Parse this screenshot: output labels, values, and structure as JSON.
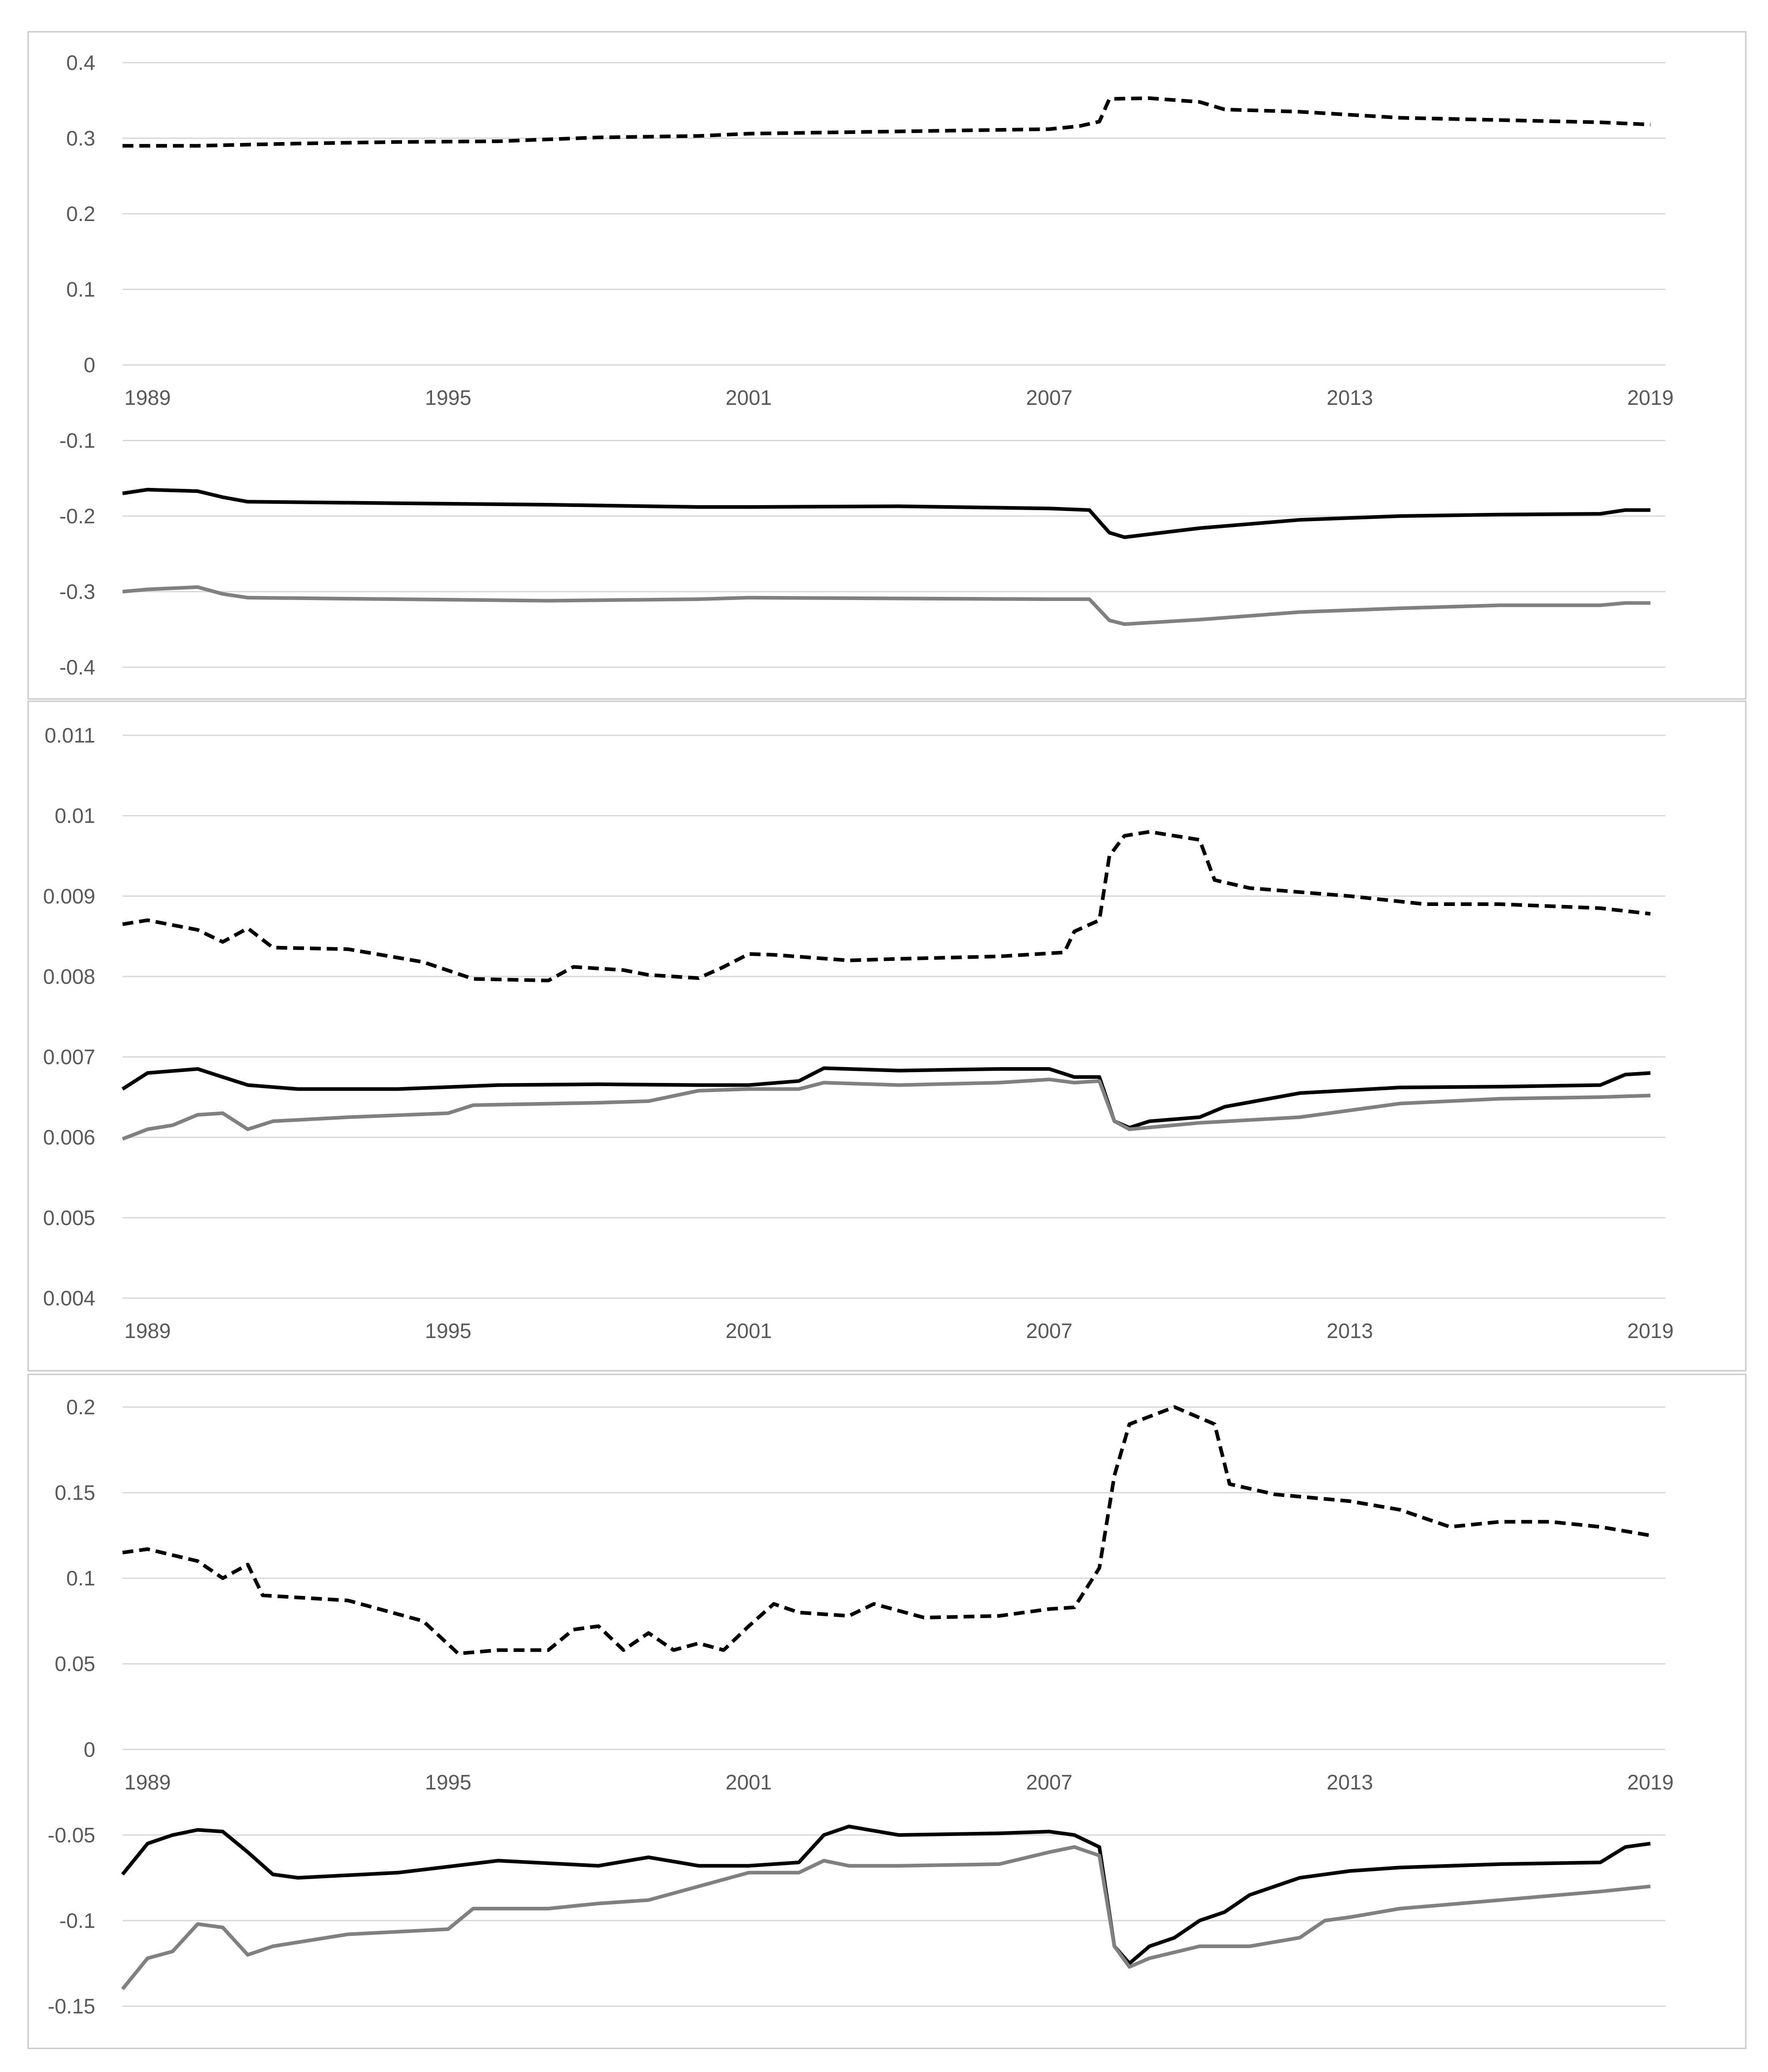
{
  "colors": {
    "dashed_series": "#000000",
    "black_series": "#000000",
    "gray_series": "#808080",
    "gridline": "#d9d9d9",
    "tick_text": "#595959",
    "panel_border": "#c8c8c8"
  },
  "chart_data": [
    {
      "type": "line",
      "title": "",
      "xlabel": "",
      "ylabel": "",
      "x_range": [
        1989,
        2019
      ],
      "xlim": [
        1988.5,
        2019.3
      ],
      "ylim": [
        -0.4,
        0.4
      ],
      "yticks": [
        0.4,
        0.3,
        0.2,
        0.1,
        0,
        -0.1,
        -0.2,
        -0.3,
        -0.4
      ],
      "ytick_labels": [
        "0.4",
        "0.3",
        "0.2",
        "0.1",
        "0",
        "-0.1",
        "-0.2",
        "-0.3",
        "-0.4"
      ],
      "xticks": [
        1989,
        1995,
        2001,
        2007,
        2013,
        2019
      ],
      "xtick_labels": [
        "1989",
        "1995",
        "2001",
        "2007",
        "2013",
        "2019"
      ],
      "xtick_label_at": 0,
      "grid": true,
      "legend": "none",
      "series": [
        {
          "name": "dashed",
          "style": "dashed",
          "x": [
            1988.5,
            1990,
            1992,
            1994,
            1996,
            1998,
            2000,
            2001,
            2004,
            2007,
            2007.6,
            2008,
            2008.2,
            2009,
            2010,
            2010.5,
            2012,
            2014,
            2016,
            2018,
            2019
          ],
          "y": [
            0.29,
            0.29,
            0.293,
            0.295,
            0.296,
            0.301,
            0.303,
            0.306,
            0.309,
            0.312,
            0.316,
            0.322,
            0.352,
            0.353,
            0.348,
            0.338,
            0.335,
            0.327,
            0.324,
            0.321,
            0.318
          ]
        },
        {
          "name": "black",
          "style": "solid",
          "x": [
            1988.5,
            1989,
            1990,
            1990.5,
            1991,
            1994,
            1997,
            2000,
            2001,
            2004,
            2007,
            2007.8,
            2008.2,
            2008.5,
            2010,
            2012,
            2014,
            2016,
            2018,
            2018.5,
            2019
          ],
          "y": [
            -0.17,
            -0.165,
            -0.167,
            -0.175,
            -0.181,
            -0.183,
            -0.185,
            -0.188,
            -0.188,
            -0.187,
            -0.19,
            -0.192,
            -0.222,
            -0.228,
            -0.216,
            -0.205,
            -0.2,
            -0.198,
            -0.197,
            -0.192,
            -0.192
          ]
        },
        {
          "name": "gray",
          "style": "solid",
          "x": [
            1988.5,
            1989,
            1990,
            1990.5,
            1991,
            1994,
            1997,
            2000,
            2001,
            2004,
            2007,
            2007.8,
            2008.2,
            2008.5,
            2010,
            2012,
            2014,
            2016,
            2018,
            2018.5,
            2019
          ],
          "y": [
            -0.3,
            -0.297,
            -0.294,
            -0.303,
            -0.308,
            -0.31,
            -0.312,
            -0.31,
            -0.308,
            -0.309,
            -0.31,
            -0.31,
            -0.338,
            -0.343,
            -0.337,
            -0.327,
            -0.322,
            -0.318,
            -0.318,
            -0.315,
            -0.315
          ]
        }
      ]
    },
    {
      "type": "line",
      "title": "",
      "xlabel": "",
      "ylabel": "",
      "x_range": [
        1989,
        2019
      ],
      "xlim": [
        1988.5,
        2019.3
      ],
      "ylim": [
        0.004,
        0.011
      ],
      "yticks": [
        0.011,
        0.01,
        0.009,
        0.008,
        0.007,
        0.006,
        0.005,
        0.004
      ],
      "ytick_labels": [
        "0.011",
        "0.01",
        "0.009",
        "0.008",
        "0.007",
        "0.006",
        "0.005",
        "0.004"
      ],
      "xticks": [
        1989,
        1995,
        2001,
        2007,
        2013,
        2019
      ],
      "xtick_labels": [
        "1989",
        "1995",
        "2001",
        "2007",
        "2013",
        "2019"
      ],
      "xtick_label_at": 0.004,
      "grid": true,
      "legend": "none",
      "series": [
        {
          "name": "dashed",
          "style": "dashed",
          "x": [
            1988.5,
            1989,
            1990,
            1990.5,
            1991,
            1991.5,
            1993,
            1994.5,
            1995.5,
            1997,
            1997.5,
            1998.5,
            1999,
            2000,
            2000.5,
            2001,
            2001.5,
            2003,
            2004,
            2006,
            2007.3,
            2007.5,
            2008,
            2008.2,
            2008.5,
            2009,
            2010,
            2010.3,
            2011,
            2013,
            2014.5,
            2016,
            2018,
            2019
          ],
          "y": [
            0.00865,
            0.0087,
            0.00858,
            0.00843,
            0.0086,
            0.00836,
            0.00834,
            0.00818,
            0.00797,
            0.00795,
            0.00812,
            0.00808,
            0.00802,
            0.00798,
            0.00812,
            0.00828,
            0.00827,
            0.0082,
            0.00822,
            0.00825,
            0.0083,
            0.00856,
            0.0087,
            0.0095,
            0.00975,
            0.0098,
            0.0097,
            0.0092,
            0.0091,
            0.009,
            0.0089,
            0.0089,
            0.00885,
            0.00878
          ]
        },
        {
          "name": "black",
          "style": "solid",
          "x": [
            1988.5,
            1989,
            1990,
            1990.5,
            1991,
            1992,
            1994,
            1996,
            1998,
            2000,
            2001,
            2002,
            2002.5,
            2004,
            2006,
            2007,
            2007.5,
            2008,
            2008.3,
            2008.6,
            2009,
            2010,
            2010.5,
            2012,
            2014,
            2016,
            2018,
            2018.5,
            2019
          ],
          "y": [
            0.0066,
            0.0068,
            0.00685,
            0.00675,
            0.00665,
            0.0066,
            0.0066,
            0.00665,
            0.00666,
            0.00665,
            0.00665,
            0.0067,
            0.00686,
            0.00683,
            0.00685,
            0.00685,
            0.00675,
            0.00675,
            0.0062,
            0.00612,
            0.0062,
            0.00625,
            0.00638,
            0.00655,
            0.00662,
            0.00663,
            0.00665,
            0.00678,
            0.0068
          ]
        },
        {
          "name": "gray",
          "style": "solid",
          "x": [
            1988.5,
            1989,
            1989.5,
            1990,
            1990.5,
            1991,
            1991.5,
            1993,
            1995,
            1995.5,
            1998,
            1999,
            2000,
            2001,
            2002,
            2002.5,
            2004,
            2006,
            2007,
            2007.5,
            2008,
            2008.3,
            2008.6,
            2010,
            2012,
            2014,
            2016,
            2018,
            2019
          ],
          "y": [
            0.00598,
            0.0061,
            0.00615,
            0.00628,
            0.0063,
            0.0061,
            0.0062,
            0.00625,
            0.0063,
            0.0064,
            0.00643,
            0.00645,
            0.00658,
            0.0066,
            0.0066,
            0.00668,
            0.00665,
            0.00668,
            0.00672,
            0.00668,
            0.0067,
            0.0062,
            0.0061,
            0.00618,
            0.00625,
            0.00642,
            0.00648,
            0.0065,
            0.00652
          ]
        }
      ]
    },
    {
      "type": "line",
      "title": "",
      "xlabel": "",
      "ylabel": "",
      "x_range": [
        1989,
        2019
      ],
      "xlim": [
        1988.5,
        2019.3
      ],
      "ylim": [
        -0.15,
        0.2
      ],
      "yticks": [
        0.2,
        0.15,
        0.1,
        0.05,
        0,
        -0.05,
        -0.1,
        -0.15
      ],
      "ytick_labels": [
        "0.2",
        "0.15",
        "0.1",
        "0.05",
        "0",
        "-0.05",
        "-0.1",
        "-0.15"
      ],
      "xticks": [
        1989,
        1995,
        2001,
        2007,
        2013,
        2019
      ],
      "xtick_labels": [
        "1989",
        "1995",
        "2001",
        "2007",
        "2013",
        "2019"
      ],
      "xtick_label_at": 0,
      "grid": true,
      "legend": "none",
      "series": [
        {
          "name": "dashed",
          "style": "dashed",
          "x": [
            1988.5,
            1989,
            1990,
            1990.5,
            1991,
            1991.3,
            1993,
            1994.5,
            1995.2,
            1996,
            1997,
            1997.5,
            1998,
            1998.5,
            1999,
            1999.5,
            2000,
            2000.5,
            2001,
            2001.5,
            2002,
            2003,
            2003.5,
            2004.5,
            2006,
            2007,
            2007.5,
            2008,
            2008.3,
            2008.6,
            2009.5,
            2010.3,
            2010.6,
            2011.5,
            2013,
            2014,
            2015,
            2016,
            2017,
            2018,
            2019
          ],
          "y": [
            0.115,
            0.117,
            0.11,
            0.1,
            0.108,
            0.09,
            0.087,
            0.075,
            0.056,
            0.058,
            0.058,
            0.07,
            0.072,
            0.058,
            0.068,
            0.058,
            0.062,
            0.058,
            0.072,
            0.085,
            0.08,
            0.078,
            0.085,
            0.077,
            0.078,
            0.082,
            0.083,
            0.106,
            0.16,
            0.19,
            0.2,
            0.19,
            0.155,
            0.149,
            0.145,
            0.14,
            0.13,
            0.133,
            0.133,
            0.13,
            0.125
          ]
        },
        {
          "name": "black",
          "style": "solid",
          "x": [
            1988.5,
            1989,
            1989.5,
            1990,
            1990.5,
            1991,
            1991.5,
            1992,
            1994,
            1996,
            1998,
            1999,
            2000,
            2001,
            2002,
            2002.5,
            2003,
            2004,
            2006,
            2007,
            2007.5,
            2008,
            2008.3,
            2008.6,
            2009,
            2009.5,
            2010,
            2010.5,
            2011,
            2012,
            2013,
            2014,
            2016,
            2018,
            2018.5,
            2019
          ],
          "y": [
            -0.073,
            -0.055,
            -0.05,
            -0.047,
            -0.048,
            -0.06,
            -0.073,
            -0.075,
            -0.072,
            -0.065,
            -0.068,
            -0.063,
            -0.068,
            -0.068,
            -0.066,
            -0.05,
            -0.045,
            -0.05,
            -0.049,
            -0.048,
            -0.05,
            -0.057,
            -0.115,
            -0.125,
            -0.115,
            -0.11,
            -0.1,
            -0.095,
            -0.085,
            -0.075,
            -0.071,
            -0.069,
            -0.067,
            -0.066,
            -0.057,
            -0.055
          ]
        },
        {
          "name": "gray",
          "style": "solid",
          "x": [
            1988.5,
            1989,
            1989.5,
            1990,
            1990.5,
            1991,
            1991.5,
            1993,
            1995,
            1995.5,
            1997,
            1998,
            1999,
            2000,
            2001,
            2002,
            2002.5,
            2003,
            2004,
            2006,
            2007,
            2007.5,
            2008,
            2008.3,
            2008.6,
            2009,
            2010,
            2011,
            2012,
            2012.5,
            2013,
            2014,
            2016,
            2018,
            2019
          ],
          "y": [
            -0.14,
            -0.122,
            -0.118,
            -0.102,
            -0.104,
            -0.12,
            -0.115,
            -0.108,
            -0.105,
            -0.093,
            -0.093,
            -0.09,
            -0.088,
            -0.08,
            -0.072,
            -0.072,
            -0.065,
            -0.068,
            -0.068,
            -0.067,
            -0.06,
            -0.057,
            -0.062,
            -0.115,
            -0.127,
            -0.122,
            -0.115,
            -0.115,
            -0.11,
            -0.1,
            -0.098,
            -0.093,
            -0.088,
            -0.083,
            -0.08
          ]
        }
      ]
    }
  ]
}
